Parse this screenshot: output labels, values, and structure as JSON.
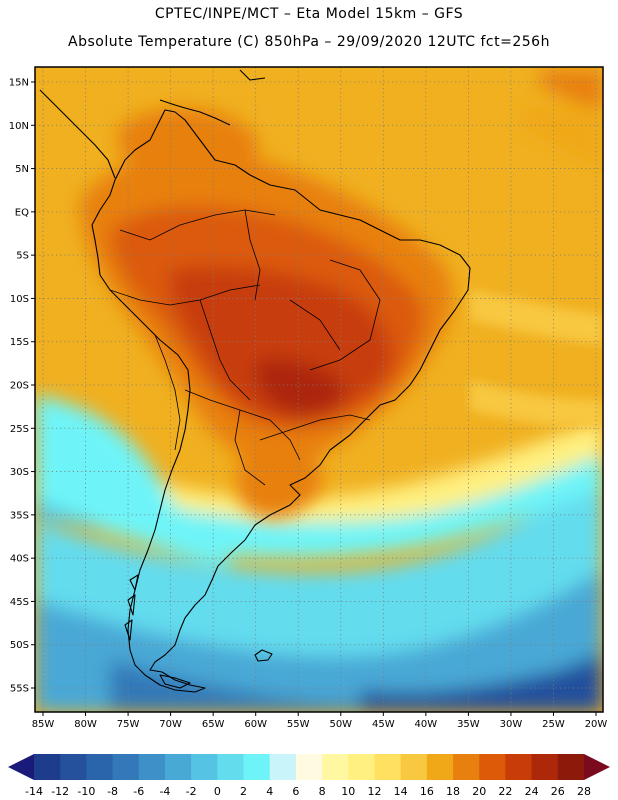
{
  "header": {
    "title_line1": "CPTEC/INPE/MCT –  Eta Model 15km – GFS",
    "title_line2": "Absolute Temperature (C) 850hPa – 29/09/2020 12UTC fct=256h"
  },
  "map": {
    "region": "South America",
    "variable": "Absolute Temperature 850hPa",
    "units": "C",
    "lat_labels": [
      "15N",
      "10N",
      "5N",
      "EQ",
      "5S",
      "10S",
      "15S",
      "20S",
      "25S",
      "30S",
      "35S",
      "40S",
      "45S",
      "50S",
      "55S"
    ],
    "lon_labels": [
      "85W",
      "80W",
      "75W",
      "70W",
      "65W",
      "60W",
      "55W",
      "50W",
      "45W",
      "40W",
      "35W",
      "30W",
      "25W",
      "20W"
    ],
    "lon_range": [
      -85,
      -20
    ],
    "lat_range": [
      -58,
      17
    ]
  },
  "colorbar": {
    "labels": [
      "-14",
      "-12",
      "-10",
      "-8",
      "-6",
      "-4",
      "-2",
      "0",
      "2",
      "4",
      "6",
      "8",
      "10",
      "12",
      "14",
      "16",
      "18",
      "20",
      "22",
      "24",
      "26",
      "28"
    ],
    "under_color": "#1a1a7a",
    "over_color": "#7a0a1e",
    "colors": [
      "#1e3c8c",
      "#24509c",
      "#2a64aa",
      "#3378b8",
      "#3d90c8",
      "#48a8d6",
      "#55c4e4",
      "#63dcee",
      "#6ef4f8",
      "#c8f4fa",
      "#fffae0",
      "#fff8a0",
      "#fff080",
      "#ffe060",
      "#f8c840",
      "#f0a818",
      "#e88010",
      "#dc5a08",
      "#c83c08",
      "#ac2808",
      "#8c1a0a"
    ]
  }
}
